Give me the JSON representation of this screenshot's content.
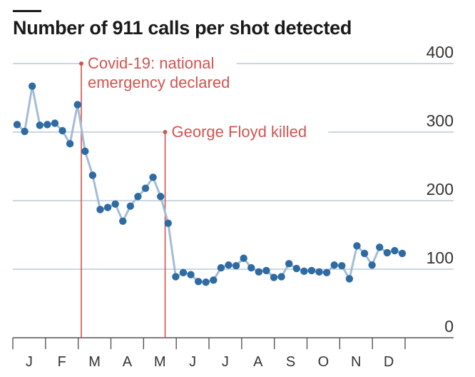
{
  "chart_data": {
    "type": "line",
    "title": "Number of 911 calls per shot detected",
    "xlabel": "",
    "ylabel": "",
    "ylim": [
      0,
      400
    ],
    "yticks": [
      "0",
      "100",
      "200",
      "300",
      "400"
    ],
    "xticks": [
      "J",
      "F",
      "M",
      "A",
      "M",
      "J",
      "J",
      "A",
      "S",
      "O",
      "N",
      "D"
    ],
    "grid": true,
    "colors": {
      "line": "#a3bcd9",
      "point": "#2f6ba3",
      "annotation": "#d1544f",
      "grid": "#b8cad9",
      "axis": "#555555"
    },
    "series": [
      {
        "values": [
          311,
          301,
          367,
          310,
          311,
          313,
          302,
          283,
          340,
          272,
          237,
          187,
          190,
          195,
          170,
          192,
          206,
          218,
          234,
          206,
          167,
          89,
          95,
          92,
          82,
          81,
          84,
          102,
          106,
          105,
          116,
          102,
          96,
          98,
          88,
          89,
          108,
          101,
          97,
          98,
          96,
          95,
          106,
          105,
          86,
          134,
          123,
          106,
          132,
          124,
          127,
          123
        ]
      }
    ],
    "annotations": [
      {
        "lines": [
          "Covid-19: national",
          "emergency declared"
        ],
        "week": 8.5,
        "value": 400
      },
      {
        "lines": [
          "George Floyd killed"
        ],
        "week": 19.6,
        "value": 300
      }
    ]
  }
}
